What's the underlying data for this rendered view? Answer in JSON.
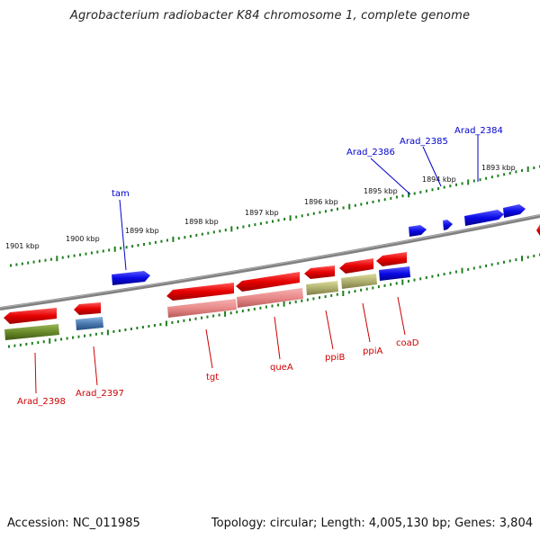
{
  "title": "Agrobacterium radiobacter K84 chromosome 1, complete genome",
  "footer": {
    "accession": "Accession: NC_011985",
    "summary": "Topology: circular; Length: 4,005,130 bp; Genes: 3,804"
  },
  "colors": {
    "backbone": "#808080",
    "tick": "#1f7f1f",
    "forward_gene": "#0a0ae6",
    "reverse_gene": "#e60000",
    "forward_label": "#0000cc",
    "reverse_label": "#cc0000",
    "trna": "#e88a8a",
    "olive": "#b0b070",
    "darkolive": "#6a8a2a",
    "steel": "#4a7ab0"
  },
  "ticks_kbp": [
    {
      "label": "1901 kbp"
    },
    {
      "label": "1900 kbp"
    },
    {
      "label": "1899 kbp"
    },
    {
      "label": "1898 kbp"
    },
    {
      "label": "1897 kbp"
    },
    {
      "label": "1896 kbp"
    },
    {
      "label": "1895 kbp"
    },
    {
      "label": "1894 kbp"
    },
    {
      "label": "1893 kbp"
    }
  ],
  "gene_labels": {
    "forward": [
      "tam",
      "Arad_2386",
      "Arad_2385",
      "Arad_2384"
    ],
    "reverse": [
      "Arad_2398",
      "Arad_2397",
      "tgt",
      "queA",
      "ppiB",
      "ppiA",
      "coaD"
    ]
  }
}
